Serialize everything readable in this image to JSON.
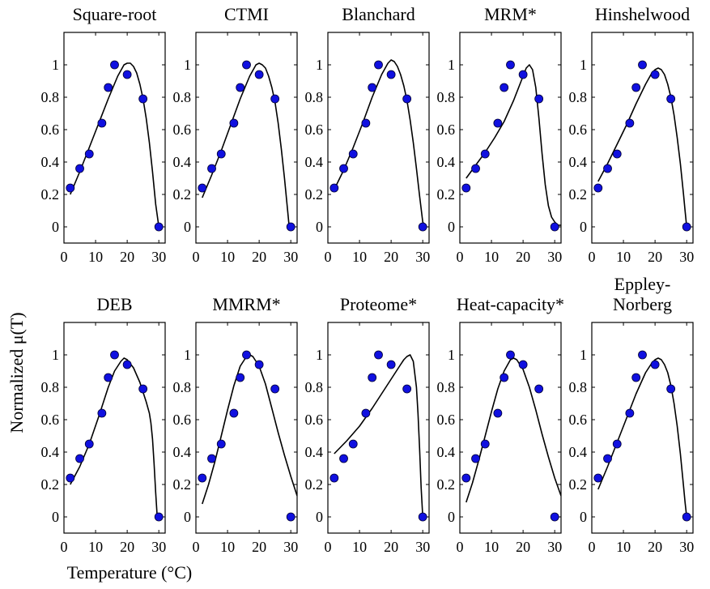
{
  "figure": {
    "xlabel": "Temperature (°C)",
    "ylabel": "Normalized μ(T)"
  },
  "colors": {
    "points": "#1010e0",
    "point_edge": "#000033",
    "curve": "#000000",
    "axes": "#000000"
  },
  "chart_data": [
    {
      "type": "scatter",
      "title": [
        "Square-root"
      ],
      "xlim": [
        0,
        32
      ],
      "ylim": [
        -0.1,
        1.2
      ],
      "xticks": [
        0,
        10,
        20,
        30
      ],
      "yticks": [
        0,
        0.2,
        0.4,
        0.6,
        0.8,
        1
      ],
      "series": [
        {
          "kind": "points",
          "x": [
            2,
            5,
            8,
            12,
            14,
            16,
            20,
            25,
            30
          ],
          "y": [
            0.24,
            0.36,
            0.45,
            0.64,
            0.86,
            1.0,
            0.94,
            0.79,
            0.0
          ]
        },
        {
          "kind": "curve",
          "x": [
            2,
            5,
            8,
            11,
            14,
            17,
            19,
            20,
            21,
            22,
            23,
            24,
            25,
            26,
            27,
            28,
            29,
            30
          ],
          "y": [
            0.2,
            0.34,
            0.49,
            0.64,
            0.79,
            0.93,
            1.0,
            1.01,
            1.01,
            0.99,
            0.95,
            0.88,
            0.79,
            0.67,
            0.52,
            0.34,
            0.14,
            0.0
          ]
        }
      ]
    },
    {
      "type": "scatter",
      "title": [
        "CTMI"
      ],
      "xlim": [
        0,
        32
      ],
      "ylim": [
        -0.1,
        1.2
      ],
      "xticks": [
        0,
        10,
        20,
        30
      ],
      "yticks": [
        0,
        0.2,
        0.4,
        0.6,
        0.8,
        1
      ],
      "series": [
        {
          "kind": "points",
          "x": [
            2,
            5,
            8,
            12,
            14,
            16,
            20,
            25,
            30
          ],
          "y": [
            0.24,
            0.36,
            0.45,
            0.64,
            0.86,
            1.0,
            0.94,
            0.79,
            0.0
          ]
        },
        {
          "kind": "curve",
          "x": [
            2,
            5,
            8,
            11,
            14,
            17,
            19,
            20,
            21,
            22,
            23,
            24,
            25,
            26,
            27,
            28,
            29,
            29.5
          ],
          "y": [
            0.18,
            0.32,
            0.47,
            0.63,
            0.79,
            0.93,
            1.0,
            1.01,
            1.0,
            0.98,
            0.93,
            0.86,
            0.77,
            0.64,
            0.48,
            0.3,
            0.1,
            0.0
          ]
        }
      ]
    },
    {
      "type": "scatter",
      "title": [
        "Blanchard"
      ],
      "xlim": [
        0,
        32
      ],
      "ylim": [
        -0.1,
        1.2
      ],
      "xticks": [
        0,
        10,
        20,
        30
      ],
      "yticks": [
        0,
        0.2,
        0.4,
        0.6,
        0.8,
        1
      ],
      "series": [
        {
          "kind": "points",
          "x": [
            2,
            5,
            8,
            12,
            14,
            16,
            20,
            25,
            30
          ],
          "y": [
            0.24,
            0.36,
            0.45,
            0.64,
            0.86,
            1.0,
            0.94,
            0.79,
            0.0
          ]
        },
        {
          "kind": "curve",
          "x": [
            2,
            5,
            8,
            11,
            14,
            17,
            19,
            20,
            21,
            22,
            23,
            24,
            25,
            26,
            27,
            28,
            29,
            30,
            31
          ],
          "y": [
            0.23,
            0.35,
            0.49,
            0.64,
            0.8,
            0.94,
            1.01,
            1.03,
            1.02,
            0.99,
            0.94,
            0.87,
            0.78,
            0.66,
            0.52,
            0.36,
            0.19,
            0.03,
            0.0
          ]
        }
      ]
    },
    {
      "type": "scatter",
      "title": [
        "MRM*"
      ],
      "xlim": [
        0,
        32
      ],
      "ylim": [
        -0.1,
        1.2
      ],
      "xticks": [
        0,
        10,
        20,
        30
      ],
      "yticks": [
        0,
        0.2,
        0.4,
        0.6,
        0.8,
        1
      ],
      "series": [
        {
          "kind": "points",
          "x": [
            2,
            5,
            8,
            12,
            14,
            16,
            20,
            25,
            30
          ],
          "y": [
            0.24,
            0.36,
            0.45,
            0.64,
            0.86,
            1.0,
            0.94,
            0.79,
            0.0
          ]
        },
        {
          "kind": "curve",
          "x": [
            2,
            5,
            8,
            11,
            14,
            17,
            19,
            20,
            21,
            22,
            23,
            24,
            25,
            26,
            27,
            28,
            29,
            30,
            31,
            32
          ],
          "y": [
            0.3,
            0.38,
            0.46,
            0.55,
            0.65,
            0.78,
            0.88,
            0.93,
            0.98,
            1.0,
            0.97,
            0.86,
            0.67,
            0.45,
            0.26,
            0.13,
            0.06,
            0.03,
            0.01,
            0.01
          ]
        }
      ]
    },
    {
      "type": "scatter",
      "title": [
        "Hinshelwood"
      ],
      "xlim": [
        0,
        32
      ],
      "ylim": [
        -0.1,
        1.2
      ],
      "xticks": [
        0,
        10,
        20,
        30
      ],
      "yticks": [
        0,
        0.2,
        0.4,
        0.6,
        0.8,
        1
      ],
      "series": [
        {
          "kind": "points",
          "x": [
            2,
            5,
            8,
            12,
            14,
            16,
            20,
            25,
            30
          ],
          "y": [
            0.24,
            0.36,
            0.45,
            0.64,
            0.86,
            1.0,
            0.94,
            0.79,
            0.0
          ]
        },
        {
          "kind": "curve",
          "x": [
            2,
            5,
            8,
            11,
            14,
            17,
            19,
            20,
            21,
            22,
            23,
            24,
            25,
            26,
            27,
            28,
            29,
            29.5,
            30
          ],
          "y": [
            0.28,
            0.39,
            0.51,
            0.63,
            0.76,
            0.88,
            0.95,
            0.97,
            0.98,
            0.97,
            0.94,
            0.88,
            0.8,
            0.69,
            0.55,
            0.39,
            0.2,
            0.1,
            0.0
          ]
        }
      ]
    },
    {
      "type": "scatter",
      "title": [
        "DEB"
      ],
      "xlim": [
        0,
        32
      ],
      "ylim": [
        -0.1,
        1.2
      ],
      "xticks": [
        0,
        10,
        20,
        30
      ],
      "yticks": [
        0,
        0.2,
        0.4,
        0.6,
        0.8,
        1
      ],
      "series": [
        {
          "kind": "points",
          "x": [
            2,
            5,
            8,
            12,
            14,
            16,
            20,
            25,
            30
          ],
          "y": [
            0.24,
            0.36,
            0.45,
            0.64,
            0.86,
            1.0,
            0.94,
            0.79,
            0.0
          ]
        },
        {
          "kind": "curve",
          "x": [
            2,
            5,
            8,
            11,
            14,
            16,
            18,
            19,
            20,
            22,
            24,
            26,
            27,
            27.5,
            28,
            28.5,
            29,
            29.5
          ],
          "y": [
            0.2,
            0.31,
            0.45,
            0.62,
            0.8,
            0.9,
            0.96,
            0.98,
            0.97,
            0.92,
            0.83,
            0.71,
            0.64,
            0.58,
            0.48,
            0.33,
            0.15,
            0.0
          ]
        }
      ]
    },
    {
      "type": "scatter",
      "title": [
        "MMRM*"
      ],
      "xlim": [
        0,
        32
      ],
      "ylim": [
        -0.1,
        1.2
      ],
      "xticks": [
        0,
        10,
        20,
        30
      ],
      "yticks": [
        0,
        0.2,
        0.4,
        0.6,
        0.8,
        1
      ],
      "series": [
        {
          "kind": "points",
          "x": [
            2,
            5,
            8,
            12,
            14,
            16,
            20,
            25,
            30
          ],
          "y": [
            0.24,
            0.36,
            0.45,
            0.64,
            0.86,
            1.0,
            0.94,
            0.79,
            0.0
          ]
        },
        {
          "kind": "curve",
          "x": [
            2,
            4,
            6,
            8,
            10,
            12,
            14,
            16,
            17,
            18,
            20,
            22,
            24,
            26,
            28,
            30,
            32
          ],
          "y": [
            0.08,
            0.2,
            0.34,
            0.5,
            0.66,
            0.81,
            0.93,
            0.99,
            1.0,
            0.99,
            0.93,
            0.82,
            0.67,
            0.52,
            0.38,
            0.25,
            0.13
          ]
        }
      ]
    },
    {
      "type": "scatter",
      "title": [
        "Proteome*"
      ],
      "xlim": [
        0,
        32
      ],
      "ylim": [
        -0.1,
        1.2
      ],
      "xticks": [
        0,
        10,
        20,
        30
      ],
      "yticks": [
        0,
        0.2,
        0.4,
        0.6,
        0.8,
        1
      ],
      "series": [
        {
          "kind": "points",
          "x": [
            2,
            5,
            8,
            12,
            14,
            16,
            20,
            25,
            30
          ],
          "y": [
            0.24,
            0.36,
            0.45,
            0.64,
            0.86,
            1.0,
            0.94,
            0.79,
            0.0
          ]
        },
        {
          "kind": "curve",
          "x": [
            2,
            6,
            10,
            14,
            18,
            21,
            23,
            24,
            25,
            26,
            27,
            28,
            28.5,
            29,
            29.5,
            30
          ],
          "y": [
            0.39,
            0.47,
            0.56,
            0.67,
            0.79,
            0.88,
            0.94,
            0.97,
            0.99,
            1.0,
            0.96,
            0.8,
            0.64,
            0.42,
            0.18,
            0.0
          ]
        }
      ]
    },
    {
      "type": "scatter",
      "title": [
        "Heat-capacity*"
      ],
      "xlim": [
        0,
        32
      ],
      "ylim": [
        -0.1,
        1.2
      ],
      "xticks": [
        0,
        10,
        20,
        30
      ],
      "yticks": [
        0,
        0.2,
        0.4,
        0.6,
        0.8,
        1
      ],
      "series": [
        {
          "kind": "points",
          "x": [
            2,
            5,
            8,
            12,
            14,
            16,
            20,
            25,
            30
          ],
          "y": [
            0.24,
            0.36,
            0.45,
            0.64,
            0.86,
            1.0,
            0.94,
            0.79,
            0.0
          ]
        },
        {
          "kind": "curve",
          "x": [
            2,
            4,
            6,
            8,
            10,
            12,
            14,
            16,
            17,
            18,
            20,
            22,
            24,
            26,
            28,
            30,
            32
          ],
          "y": [
            0.09,
            0.21,
            0.35,
            0.5,
            0.65,
            0.79,
            0.9,
            0.97,
            0.98,
            0.97,
            0.91,
            0.8,
            0.66,
            0.51,
            0.37,
            0.24,
            0.13
          ]
        }
      ]
    },
    {
      "type": "scatter",
      "title": [
        "Eppley-",
        "Norberg"
      ],
      "xlim": [
        0,
        32
      ],
      "ylim": [
        -0.1,
        1.2
      ],
      "xticks": [
        0,
        10,
        20,
        30
      ],
      "yticks": [
        0,
        0.2,
        0.4,
        0.6,
        0.8,
        1
      ],
      "series": [
        {
          "kind": "points",
          "x": [
            2,
            5,
            8,
            12,
            14,
            16,
            20,
            25,
            30
          ],
          "y": [
            0.24,
            0.36,
            0.45,
            0.64,
            0.86,
            1.0,
            0.94,
            0.79,
            0.0
          ]
        },
        {
          "kind": "curve",
          "x": [
            2,
            5,
            8,
            11,
            14,
            17,
            19,
            20,
            21,
            22,
            23,
            24,
            25,
            26,
            27,
            28,
            29,
            29.5,
            30
          ],
          "y": [
            0.17,
            0.31,
            0.46,
            0.61,
            0.76,
            0.89,
            0.95,
            0.97,
            0.98,
            0.97,
            0.94,
            0.89,
            0.81,
            0.7,
            0.56,
            0.39,
            0.19,
            0.09,
            0.0
          ]
        }
      ]
    }
  ]
}
